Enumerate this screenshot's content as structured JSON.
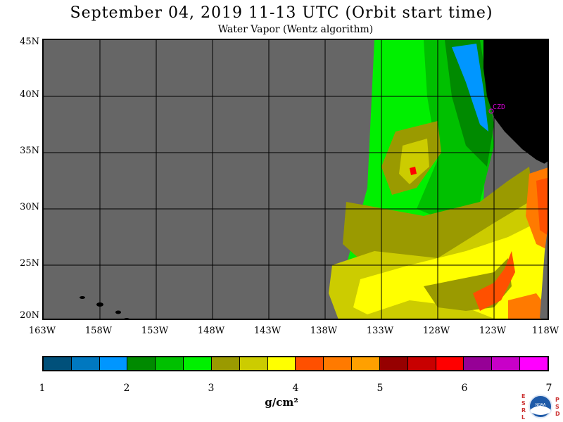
{
  "title": "September 04, 2019  11-13 UTC  (Orbit start time)",
  "subtitle": "Water Vapor (Wentz algorithm)",
  "latitude_labels": [
    "45N",
    "40N",
    "35N",
    "30N",
    "25N",
    "20N"
  ],
  "longitude_labels": [
    "163W",
    "158W",
    "153W",
    "148W",
    "143W",
    "138W",
    "133W",
    "128W",
    "123W",
    "118W"
  ],
  "station": "CZD",
  "colorbar": {
    "ticks": [
      "1",
      "2",
      "3",
      "4",
      "5",
      "6",
      "7"
    ],
    "units": "g/cm²",
    "colors": [
      "#00507a",
      "#0078c0",
      "#0096ff",
      "#008a00",
      "#00c000",
      "#00f000",
      "#9a9a00",
      "#cccc00",
      "#ffff00",
      "#ff5000",
      "#ff7a00",
      "#ffa000",
      "#960000",
      "#c80000",
      "#ff0000",
      "#960096",
      "#c800c8",
      "#ff00ff"
    ]
  },
  "colors": {
    "no_data": "#666666",
    "land": "#000000",
    "gridline": "#000000",
    "station_marker": "#cc00cc"
  },
  "logo": {
    "left_letters": "ESRL",
    "right_letters": "PSD",
    "center_text": "NOAA"
  }
}
